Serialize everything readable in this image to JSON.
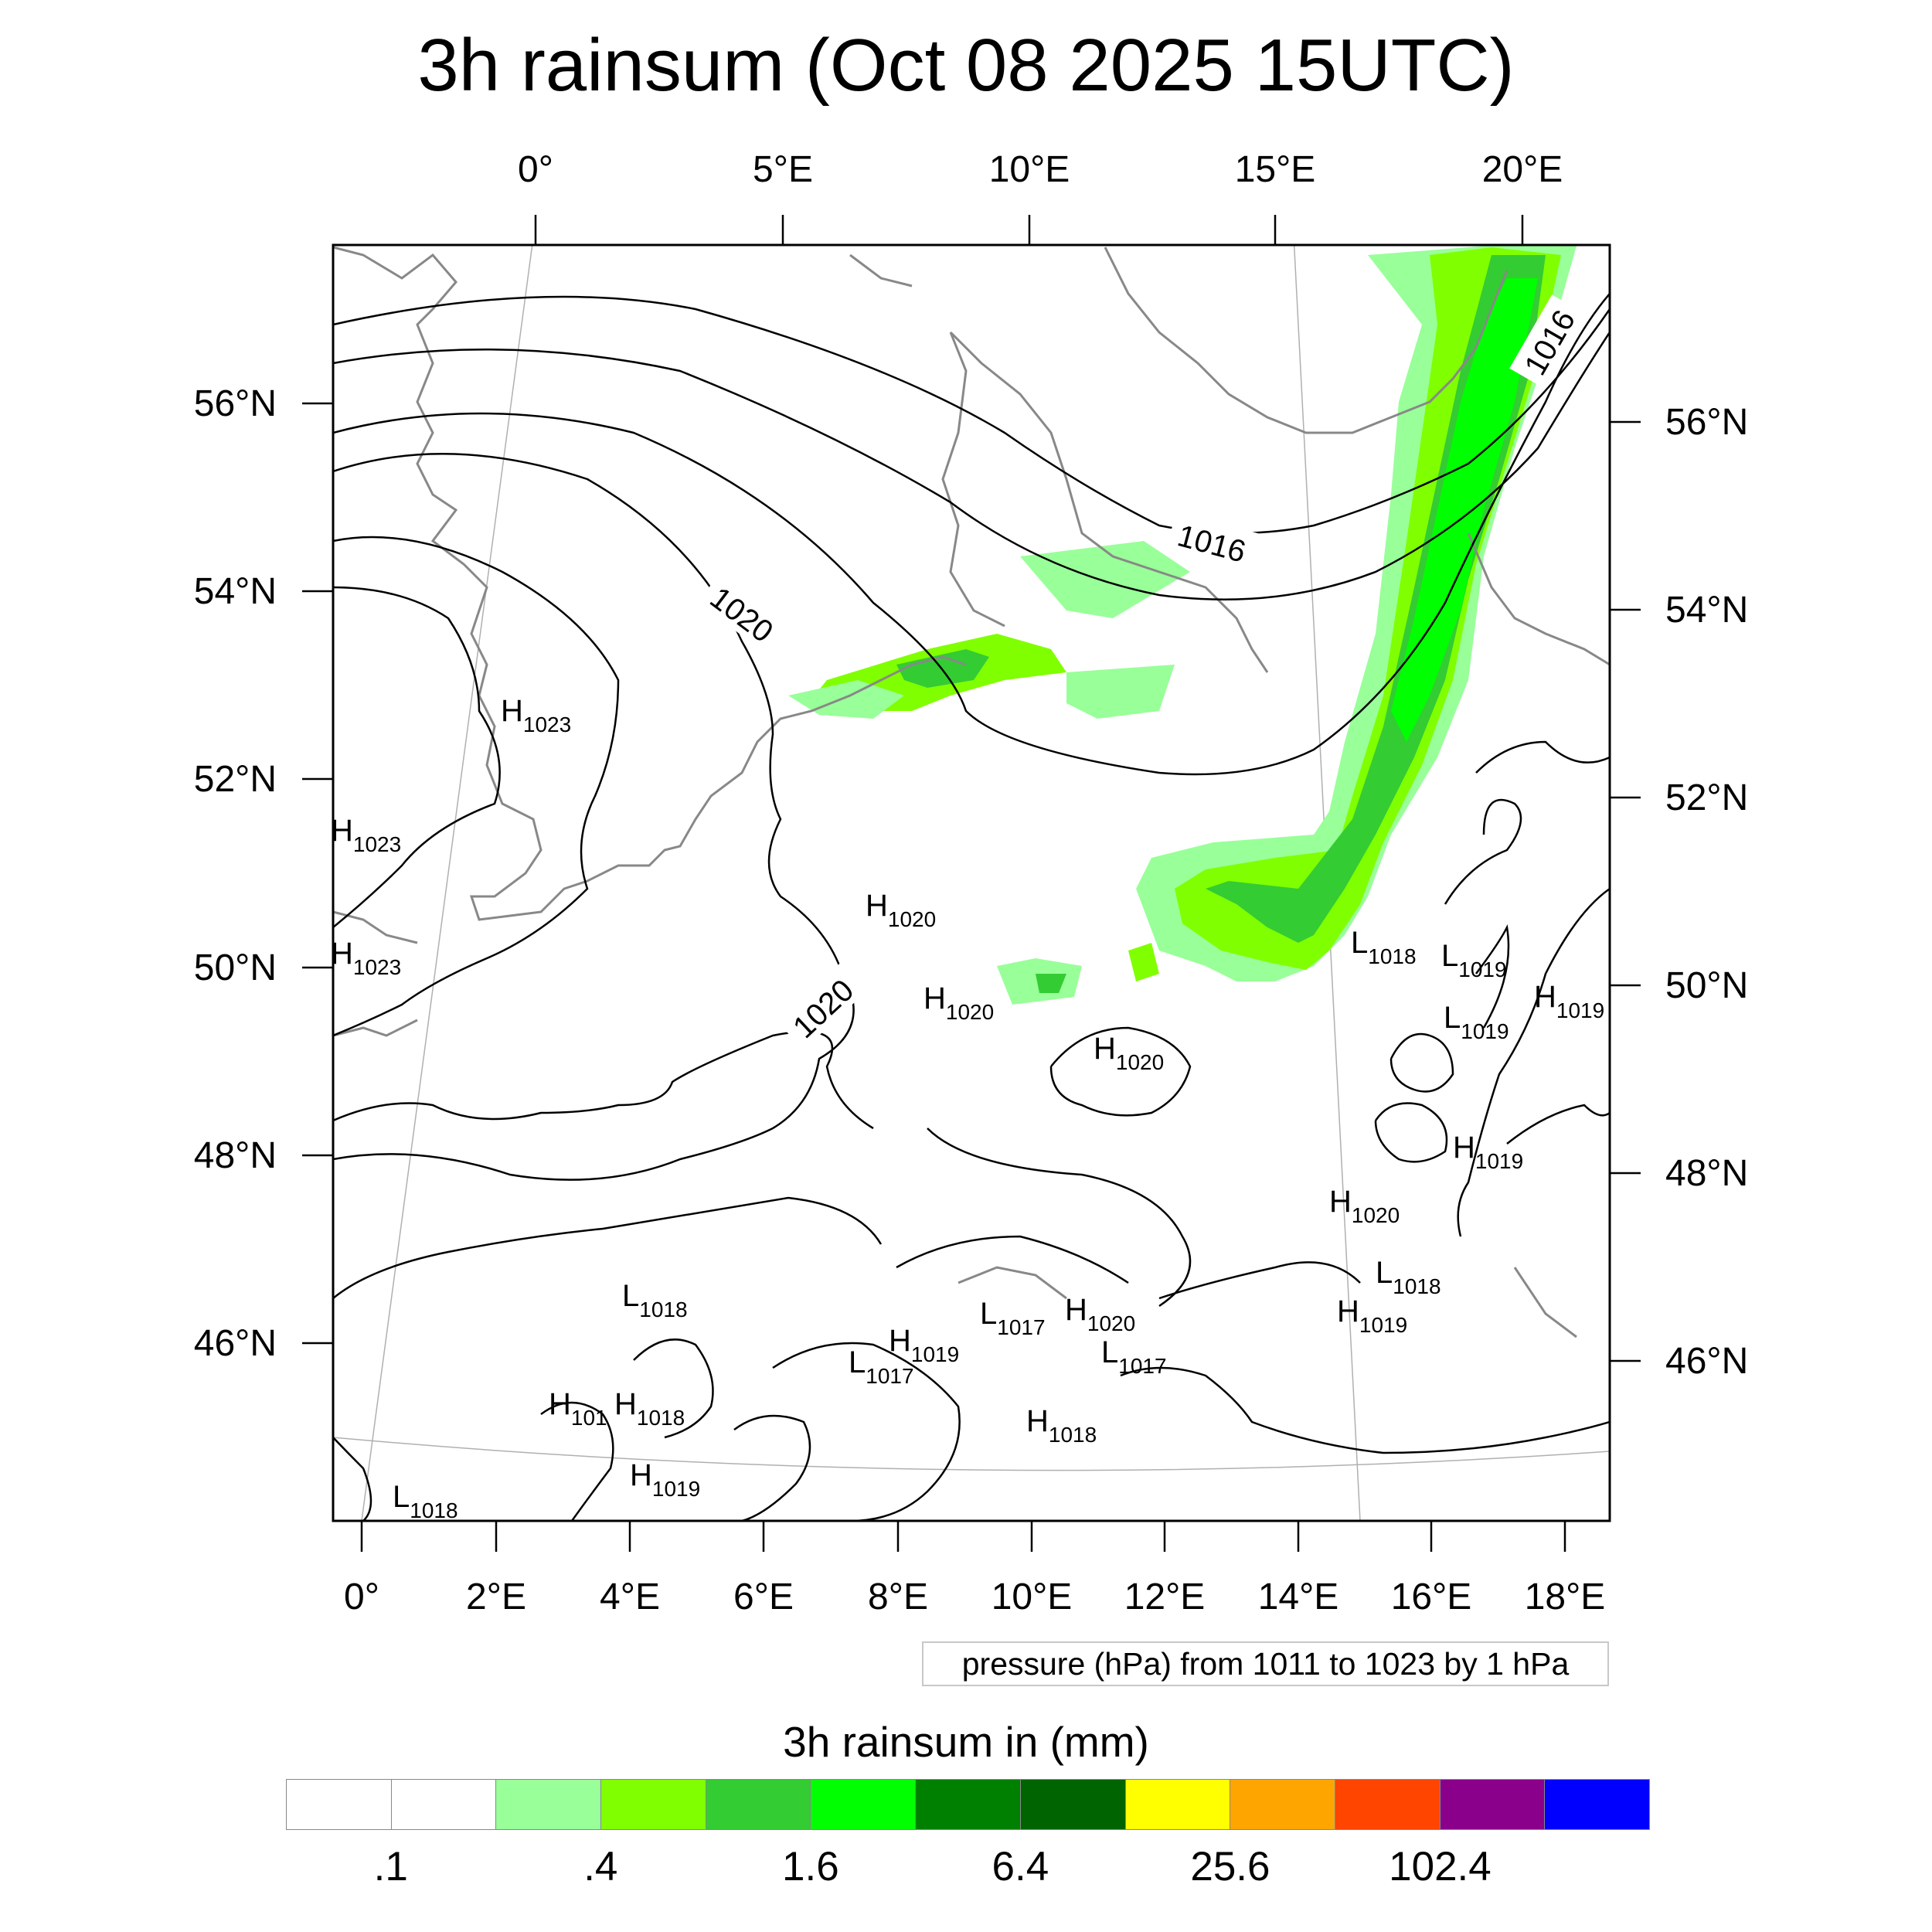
{
  "title": "3h rainsum (Oct 08 2025 15UTC)",
  "map": {
    "top_lon_labels": [
      "0°",
      "5°E",
      "10°E",
      "15°E",
      "20°E"
    ],
    "bottom_lon_labels": [
      "0°",
      "2°E",
      "4°E",
      "6°E",
      "8°E",
      "10°E",
      "12°E",
      "14°E",
      "16°E",
      "18°E"
    ],
    "left_lat_labels": [
      "56°N",
      "54°N",
      "52°N",
      "50°N",
      "48°N",
      "46°N"
    ],
    "right_lat_labels": [
      "56°N",
      "54°N",
      "52°N",
      "50°N",
      "48°N",
      "46°N"
    ],
    "isobar_labels": [
      "1020",
      "1020",
      "1016",
      "1016"
    ],
    "pressure_centers": [
      {
        "t": "H",
        "v": "1023"
      },
      {
        "t": "H",
        "v": "1023"
      },
      {
        "t": "H",
        "v": "1023"
      },
      {
        "t": "H",
        "v": "1020"
      },
      {
        "t": "H",
        "v": "1020"
      },
      {
        "t": "H",
        "v": "1020"
      },
      {
        "t": "L",
        "v": "1018"
      },
      {
        "t": "L",
        "v": "1019"
      },
      {
        "t": "L",
        "v": "1019"
      },
      {
        "t": "H",
        "v": "1019"
      },
      {
        "t": "H",
        "v": "1019"
      },
      {
        "t": "H",
        "v": "1020"
      },
      {
        "t": "L",
        "v": "1018"
      },
      {
        "t": "H",
        "v": "1019"
      },
      {
        "t": "L",
        "v": "1018"
      },
      {
        "t": "L",
        "v": "1017"
      },
      {
        "t": "H",
        "v": "1020"
      },
      {
        "t": "H",
        "v": "1019"
      },
      {
        "t": "L",
        "v": "1017"
      },
      {
        "t": "L",
        "v": "1017"
      },
      {
        "t": "H",
        "v": "101"
      },
      {
        "t": "H",
        "v": "1018"
      },
      {
        "t": "H",
        "v": "1018"
      },
      {
        "t": "H",
        "v": "1019"
      },
      {
        "t": "L",
        "v": "1018"
      }
    ]
  },
  "contour_note": "pressure (hPa) from 1011 to 1023 by 1 hPa",
  "colorbar": {
    "title": "3h rainsum in (mm)",
    "colors": [
      "#ffffff",
      "#ffffff",
      "#99ff99",
      "#80ff00",
      "#33cc33",
      "#00ff00",
      "#008000",
      "#006400",
      "#ffff00",
      "#ffa500",
      "#ff4500",
      "#8b008b",
      "#0000ff"
    ],
    "labels": [
      ".1",
      ".4",
      "1.6",
      "6.4",
      "25.6",
      "102.4"
    ]
  }
}
